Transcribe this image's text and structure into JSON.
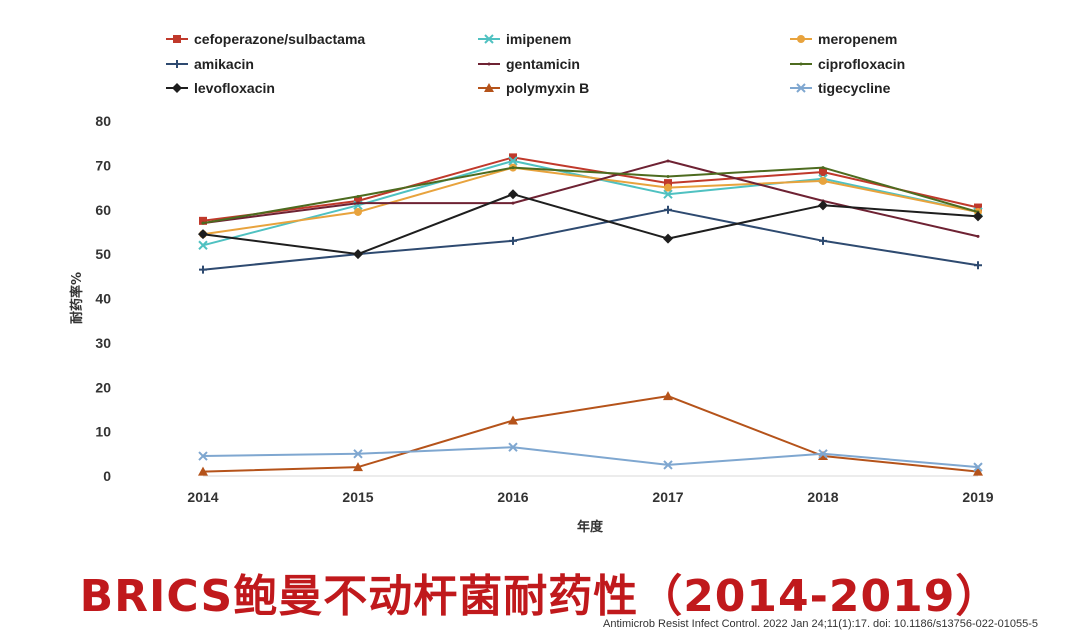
{
  "chart_data": {
    "type": "line",
    "categories": [
      "2014",
      "2015",
      "2016",
      "2017",
      "2018",
      "2019"
    ],
    "ylabel": "耐药率%",
    "xlabel": "年度",
    "ylim": [
      0,
      80
    ],
    "yticks": [
      0,
      10,
      20,
      30,
      40,
      50,
      60,
      70,
      80
    ],
    "grid": false,
    "legend_position": "top",
    "series": [
      {
        "name": "cefoperazone/sulbactama",
        "color": "#c0392b",
        "marker": "square",
        "values": [
          57.5,
          62,
          71.8,
          66,
          68.5,
          60.5
        ]
      },
      {
        "name": "imipenem",
        "color": "#4fc1c1",
        "marker": "x",
        "values": [
          52,
          61,
          71,
          63.5,
          67,
          59.5
        ]
      },
      {
        "name": "meropenem",
        "color": "#e8a33d",
        "marker": "circle",
        "values": [
          54.5,
          59.5,
          69.5,
          65,
          66.5,
          59.5
        ]
      },
      {
        "name": "amikacin",
        "color": "#2e4a70",
        "marker": "plus",
        "values": [
          46.5,
          50,
          53,
          60,
          53,
          47.5
        ]
      },
      {
        "name": "gentamicin",
        "color": "#6e2233",
        "marker": "none",
        "values": [
          57,
          61.5,
          61.5,
          71,
          62,
          54
        ]
      },
      {
        "name": "ciprofloxacin",
        "color": "#4d6b1f",
        "marker": "none",
        "values": [
          57,
          63,
          69.5,
          67.5,
          69.5,
          59.5
        ]
      },
      {
        "name": "levofloxacin",
        "color": "#1e1e1e",
        "marker": "diamond",
        "values": [
          54.5,
          50,
          63.5,
          53.5,
          61,
          58.5
        ]
      },
      {
        "name": "polymyxin B",
        "color": "#b5531a",
        "marker": "triangle",
        "values": [
          1,
          2,
          12.5,
          18,
          4.5,
          1
        ]
      },
      {
        "name": "tigecycline",
        "color": "#7fa7d0",
        "marker": "x",
        "values": [
          4.5,
          5,
          6.5,
          2.5,
          5,
          2
        ]
      }
    ]
  },
  "footer": {
    "title": "BRICS鲍曼不动杆菌耐药性（2014-2019）",
    "citation": "Antimicrob Resist Infect Control. 2022 Jan 24;11(1):17. doi: 10.1186/s13756-022-01055-5"
  }
}
